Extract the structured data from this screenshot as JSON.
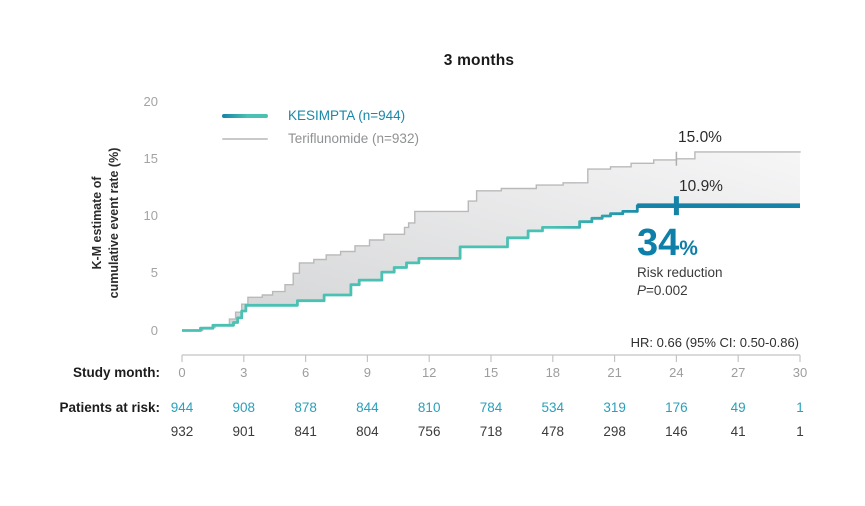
{
  "title": "3 months",
  "colors": {
    "kesimpta_teal": "#4ac1b2",
    "kesimpta_blue": "#1583a8",
    "teriflunomide_gray": "#b9b9b9",
    "fill_start": "#d2d3d4",
    "fill_end": "#f6f6f7",
    "axis_gray": "#c4c4c4",
    "kesimpta_text": "#1a88a9",
    "teriflunomide_text": "#8f9193",
    "risk_teal_numbers": "#2aa0bb",
    "risk_dark_numbers": "#3b3b3b",
    "accent_blue": "#0d7fa8"
  },
  "legend": {
    "kesimpta_label": "KESIMPTA (n=944)",
    "teriflunomide_label": "Teriflunomide (n=932)"
  },
  "y_axis": {
    "label_line1": "K-M estimate of",
    "label_line2": "cumulative event rate (%)",
    "ticks": [
      20,
      15,
      10,
      5,
      0
    ]
  },
  "x_axis": {
    "row_label": "Study month:",
    "ticks": [
      0,
      3,
      6,
      9,
      12,
      15,
      18,
      21,
      24,
      27,
      30
    ]
  },
  "patients_at_risk": {
    "row_label": "Patients at risk:",
    "kesimpta": [
      944,
      908,
      878,
      844,
      810,
      784,
      534,
      319,
      176,
      49,
      1
    ],
    "teriflunomide": [
      932,
      901,
      841,
      804,
      756,
      718,
      478,
      298,
      146,
      41,
      1
    ]
  },
  "annotations": {
    "teriflunomide_value": "15.0%",
    "kesimpta_value": "10.9%",
    "risk_big": "34",
    "risk_pct": "%",
    "risk_caption": "Risk reduction",
    "p_italic": "P",
    "p_rest": "=0.002",
    "hazard_ratio": "HR: 0.66 (95% CI: 0.50-0.86)"
  },
  "chart_data": {
    "type": "line",
    "subtype": "kaplan-meier-step",
    "title": "3 months",
    "xlabel": "Study month",
    "ylabel": "K-M estimate of cumulative event rate (%)",
    "xlim": [
      0,
      30
    ],
    "ylim": [
      0,
      20
    ],
    "grid": false,
    "legend_position": "top-left",
    "series": [
      {
        "name": "KESIMPTA (n=944)",
        "style": "step, teal fading to blue, thick after month ~23",
        "points": [
          [
            0,
            0
          ],
          [
            0.9,
            0.2
          ],
          [
            1.5,
            0.45
          ],
          [
            2.5,
            0.7
          ],
          [
            2.7,
            1.1
          ],
          [
            2.9,
            1.7
          ],
          [
            3.1,
            2.2
          ],
          [
            5.6,
            2.6
          ],
          [
            6.9,
            3.1
          ],
          [
            8.2,
            4.0
          ],
          [
            8.6,
            4.4
          ],
          [
            9.7,
            5.1
          ],
          [
            10.3,
            5.5
          ],
          [
            10.9,
            5.9
          ],
          [
            11.5,
            6.3
          ],
          [
            13.5,
            7.3
          ],
          [
            15.8,
            8.1
          ],
          [
            16.8,
            8.7
          ],
          [
            17.5,
            9.0
          ],
          [
            19.3,
            9.5
          ],
          [
            19.9,
            9.8
          ],
          [
            20.4,
            10.0
          ],
          [
            20.8,
            10.2
          ],
          [
            21.4,
            10.4
          ],
          [
            22.1,
            10.9
          ],
          [
            30,
            10.9
          ]
        ]
      },
      {
        "name": "Teriflunomide (n=932)",
        "style": "step, thin gray",
        "points": [
          [
            0,
            0
          ],
          [
            1.0,
            0.25
          ],
          [
            1.6,
            0.5
          ],
          [
            2.3,
            1.0
          ],
          [
            2.6,
            1.6
          ],
          [
            2.9,
            2.3
          ],
          [
            3.2,
            2.9
          ],
          [
            3.9,
            3.1
          ],
          [
            4.4,
            3.4
          ],
          [
            5.0,
            4.0
          ],
          [
            5.4,
            5.0
          ],
          [
            5.7,
            5.9
          ],
          [
            6.4,
            6.2
          ],
          [
            7.0,
            6.6
          ],
          [
            7.7,
            6.9
          ],
          [
            8.4,
            7.4
          ],
          [
            9.1,
            7.9
          ],
          [
            9.8,
            8.4
          ],
          [
            10.8,
            9.0
          ],
          [
            11.0,
            9.4
          ],
          [
            11.3,
            10.4
          ],
          [
            13.9,
            11.3
          ],
          [
            14.3,
            12.2
          ],
          [
            15.5,
            12.4
          ],
          [
            17.2,
            12.7
          ],
          [
            18.5,
            12.9
          ],
          [
            19.7,
            14.1
          ],
          [
            20.8,
            14.3
          ],
          [
            21.8,
            14.6
          ],
          [
            22.9,
            14.9
          ],
          [
            24.0,
            15.0
          ],
          [
            24.9,
            15.6
          ],
          [
            30,
            15.65
          ]
        ]
      }
    ],
    "fill_between_series": true,
    "censor_ticks": [
      {
        "series": "Teriflunomide",
        "month": 24,
        "value": 15.0
      },
      {
        "series": "KESIMPTA",
        "month": 24,
        "value": 10.9
      }
    ],
    "emphasis_segment": {
      "series": "KESIMPTA",
      "month_start": 22.1,
      "month_end": 30,
      "value": 10.9
    },
    "value_labels": [
      {
        "series": "Teriflunomide",
        "month": 24,
        "text": "15.0%"
      },
      {
        "series": "KESIMPTA",
        "month": 24,
        "text": "10.9%"
      }
    ],
    "stat_annotations": {
      "risk_reduction": "34% Risk reduction",
      "p_value": "P=0.002",
      "hazard_ratio": "HR: 0.66 (95% CI: 0.50-0.86)"
    }
  }
}
